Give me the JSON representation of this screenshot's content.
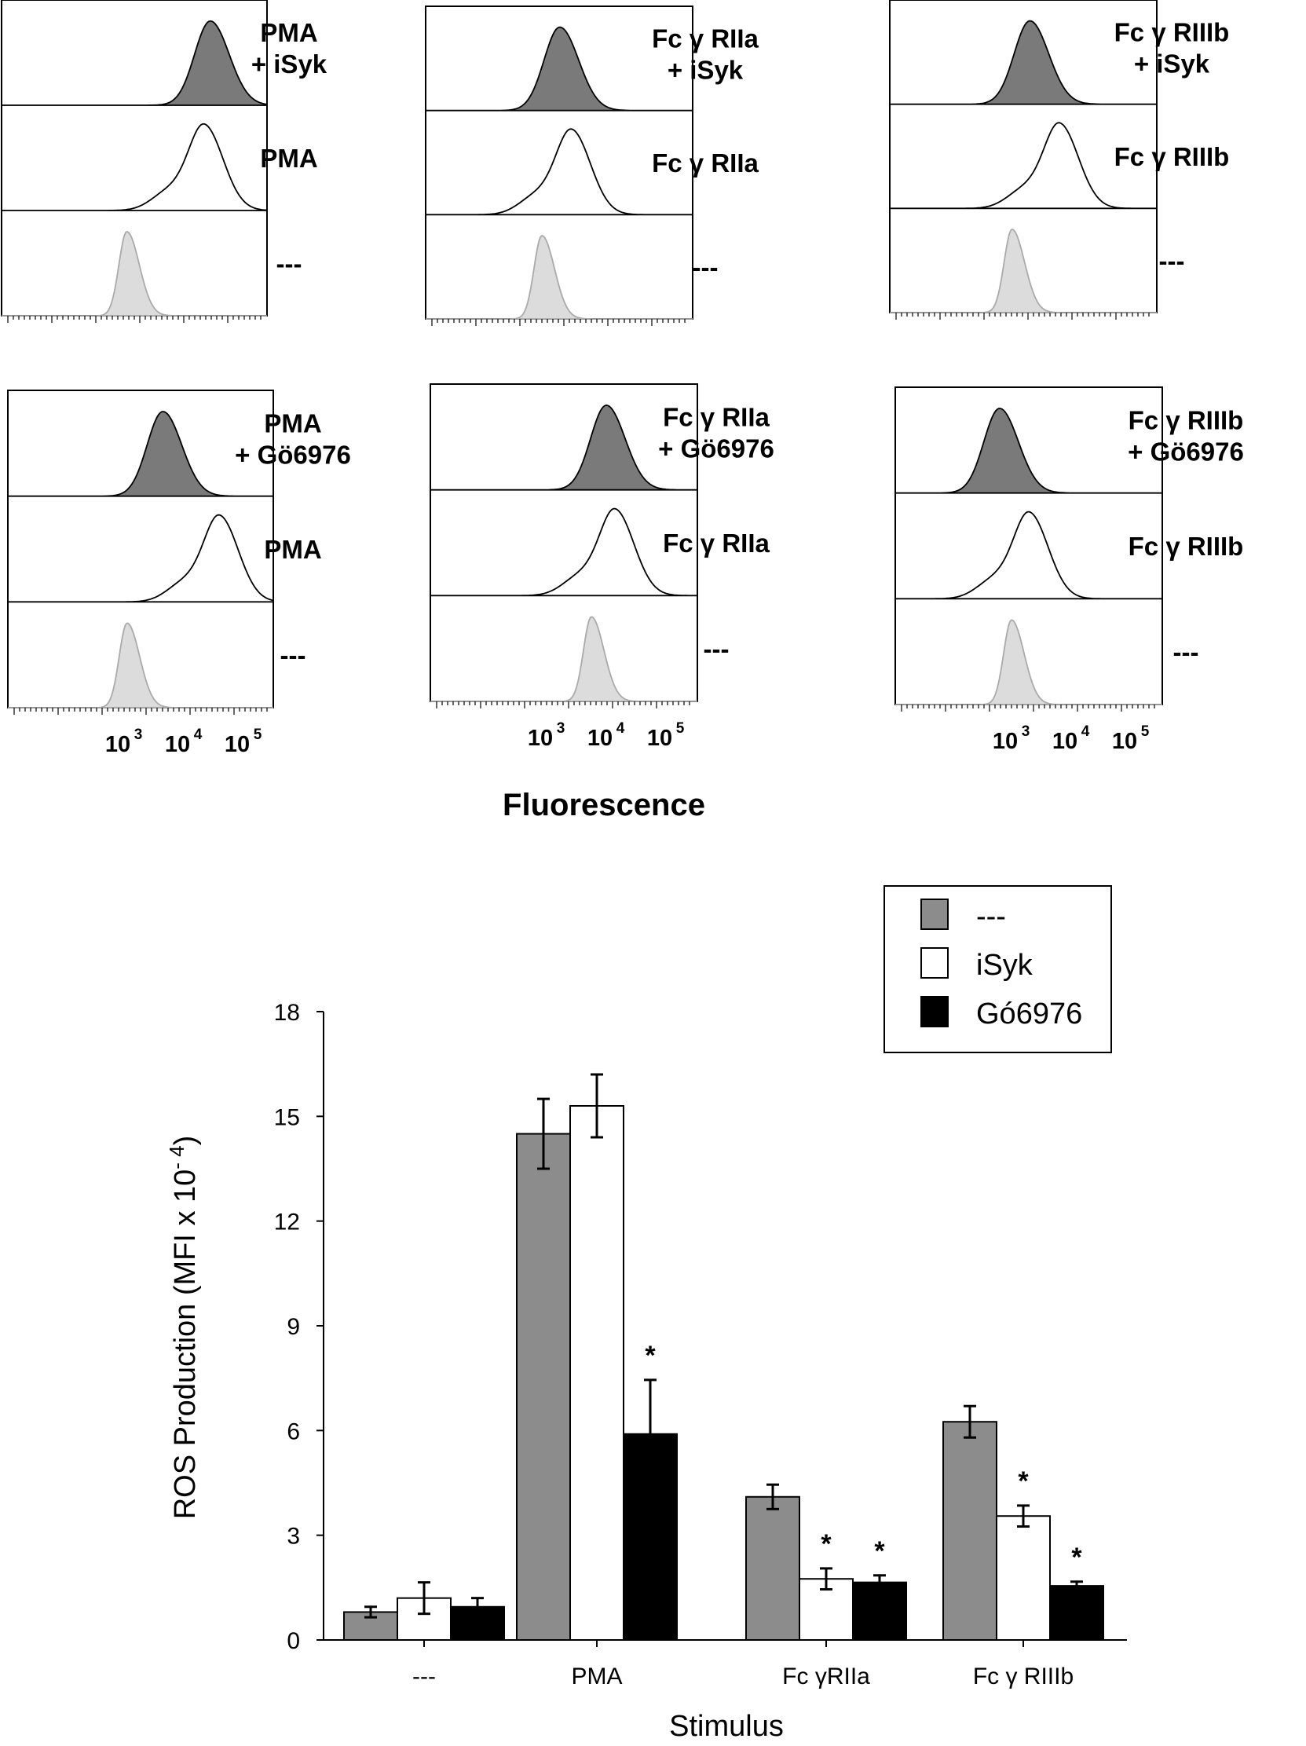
{
  "flow": {
    "xlabel": "Fluorescence",
    "tick_labels": [
      {
        "base": "10",
        "exp": "3"
      },
      {
        "base": "10",
        "exp": "4"
      },
      {
        "base": "10",
        "exp": "5"
      }
    ],
    "panels": [
      {
        "labels": [
          [
            "PMA",
            "+ iSyk"
          ],
          [
            "PMA"
          ],
          [
            "---"
          ]
        ],
        "peaks": [
          4.55,
          4.45,
          3.15
        ],
        "show_ticks": false
      },
      {
        "labels": [
          [
            "Fc γ RIIa",
            "+ iSyk"
          ],
          [
            "Fc γ RIIa"
          ],
          [
            "---"
          ]
        ],
        "peaks": [
          3.3,
          3.5,
          3.0
        ],
        "show_ticks": false
      },
      {
        "labels": [
          [
            "Fc γ RIIIb",
            "+ iSyk"
          ],
          [
            "Fc γ RIIIb"
          ],
          [
            "---"
          ]
        ],
        "peaks": [
          3.4,
          3.9,
          3.1
        ],
        "show_ticks": false
      },
      {
        "labels": [
          [
            "PMA",
            "+ Gö6976"
          ],
          [
            "PMA"
          ],
          [
            "---"
          ]
        ],
        "peaks": [
          3.65,
          4.6,
          3.05
        ],
        "show_ticks": true
      },
      {
        "labels": [
          [
            "Fc γ RIIa",
            "+ Gö6976"
          ],
          [
            "Fc γ RIIa"
          ],
          [
            "---"
          ]
        ],
        "peaks": [
          4.0,
          4.15,
          3.75
        ],
        "show_ticks": true
      },
      {
        "labels": [
          [
            "Fc γ RIIIb",
            "+ Gö6976"
          ],
          [
            "Fc γ RIIIb"
          ],
          [
            "---"
          ]
        ],
        "peaks": [
          2.8,
          3.3,
          3.0
        ],
        "show_ticks": true
      }
    ]
  },
  "chart_data": {
    "type": "bar",
    "title": "",
    "xlabel": "Stimulus",
    "ylabel": "ROS Production   (MFI x 10",
    "ylabel_exponent": "- 4",
    "ylabel_close": ")",
    "ylim": [
      0,
      18
    ],
    "yticks": [
      0,
      3,
      6,
      9,
      12,
      15,
      18
    ],
    "categories": [
      "---",
      "PMA",
      "Fc γRIIa",
      "Fc γ RIIIb"
    ],
    "series": [
      {
        "name": "---",
        "color": "#8c8c8c",
        "values": [
          0.8,
          14.5,
          4.1,
          6.25
        ],
        "errors": [
          0.15,
          1.0,
          0.35,
          0.45
        ],
        "significant": [
          false,
          false,
          false,
          false
        ]
      },
      {
        "name": "iSyk",
        "color": "#ffffff",
        "values": [
          1.2,
          15.3,
          1.75,
          3.55
        ],
        "errors": [
          0.45,
          0.9,
          0.3,
          0.3
        ],
        "significant": [
          false,
          false,
          true,
          true
        ]
      },
      {
        "name": "Gó6976",
        "color": "#000000",
        "values": [
          0.95,
          5.9,
          1.65,
          1.55
        ],
        "errors": [
          0.25,
          1.55,
          0.2,
          0.12
        ],
        "significant": [
          false,
          true,
          true,
          true
        ]
      }
    ],
    "significance_marker": "*",
    "legend_position": "top-right"
  }
}
